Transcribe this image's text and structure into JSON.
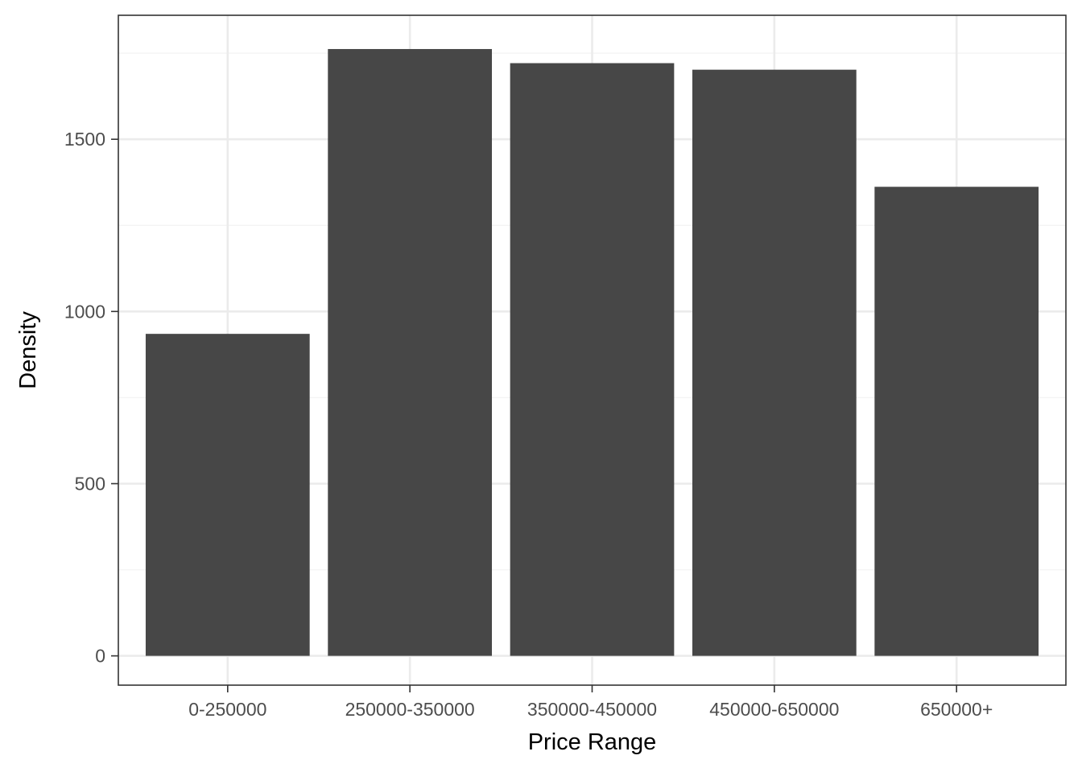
{
  "chart_data": {
    "type": "bar",
    "title": "",
    "xlabel": "Price Range",
    "ylabel": "Density",
    "categories": [
      "0-250000",
      "250000-350000",
      "350000-450000",
      "450000-650000",
      "650000+"
    ],
    "values": [
      935,
      1762,
      1721,
      1702,
      1362
    ],
    "ylim": [
      -85,
      1860
    ],
    "yticks": [
      0,
      500,
      1000,
      1500
    ],
    "ytick_labels": [
      "0",
      "500",
      "1000",
      "1500"
    ],
    "grid": true,
    "legend": "none",
    "colors": {
      "bar": "#474747",
      "panel_background": "#ffffff",
      "grid_major": "#ebebeb",
      "grid_minor": "#f4f4f4",
      "panel_border": "#333333",
      "tick": "#333333"
    }
  }
}
